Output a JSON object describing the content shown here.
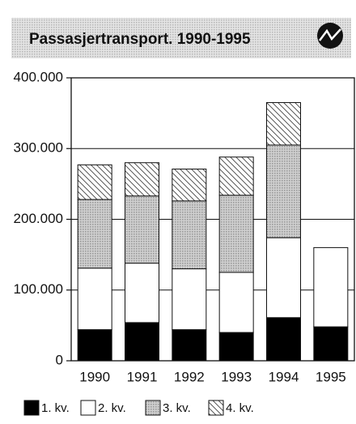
{
  "chart_data": {
    "type": "stacked_bar",
    "title": "Passasjertransport. 1990-1995",
    "categories": [
      "1990",
      "1991",
      "1992",
      "1993",
      "1994",
      "1995"
    ],
    "series": [
      {
        "name": "1. kv.",
        "color": "#000000",
        "pattern": "solid",
        "values": [
          44000,
          54000,
          44000,
          40000,
          61000,
          48000
        ]
      },
      {
        "name": "2. kv.",
        "color": "#ffffff",
        "pattern": "solid",
        "values": [
          87000,
          84000,
          86000,
          85000,
          113000,
          112000
        ]
      },
      {
        "name": "3. kv.",
        "color": "#9a9a9a",
        "pattern": "dots",
        "values": [
          97000,
          95000,
          96000,
          109000,
          131000,
          null
        ]
      },
      {
        "name": "4. kv.",
        "color": "#444444",
        "pattern": "hatch",
        "values": [
          49000,
          47000,
          45000,
          54000,
          60000,
          null
        ]
      }
    ],
    "ylim": [
      0,
      400000
    ],
    "yticks": [
      0,
      {
        "value": 100000,
        "label": "100.000"
      },
      {
        "value": 200000,
        "label": "200.000"
      },
      {
        "value": 300000,
        "label": "300.000"
      },
      {
        "value": 400000,
        "label": "400.000"
      }
    ],
    "grid": true
  }
}
